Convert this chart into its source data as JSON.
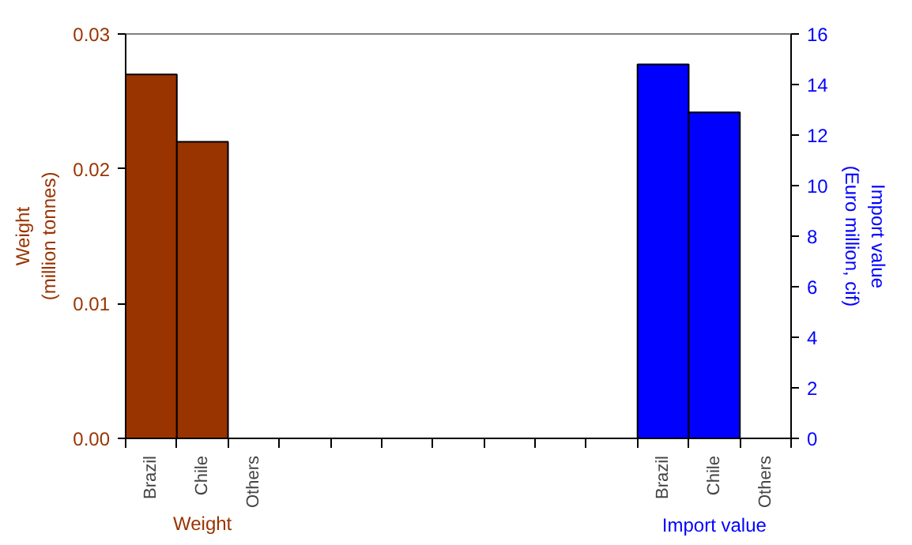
{
  "chart_data": {
    "type": "bar",
    "categories": [
      "Brazil",
      "Chile",
      "Others",
      null,
      null,
      null,
      null,
      null,
      null,
      null,
      "Brazil",
      "Chile",
      "Others"
    ],
    "ylabel": "Weight\n(million tonnes)",
    "y2label": "Import value\n(Euro million, cif)",
    "ylim": [
      0,
      0.03
    ],
    "yticks": [
      {
        "value": 0,
        "label": "0.00"
      },
      {
        "value": 0.01,
        "label": "0.01"
      },
      {
        "value": 0.02,
        "label": "0.02"
      },
      {
        "value": 0.03,
        "label": "0.03"
      }
    ],
    "y2lim": [
      0,
      16
    ],
    "y2ticks": [
      0,
      2,
      4,
      6,
      8,
      10,
      12,
      14,
      16
    ],
    "series": [
      {
        "name": "Weight",
        "color": "#993300",
        "values": [
          0.027,
          0.022,
          null,
          null,
          null,
          null,
          null,
          null,
          null,
          null,
          null,
          null,
          null
        ]
      },
      {
        "name": "Import value",
        "color": "#0000ff",
        "axis": "y2",
        "values": [
          null,
          null,
          null,
          null,
          null,
          null,
          null,
          null,
          null,
          null,
          14.8,
          12.9,
          null
        ]
      }
    ]
  }
}
